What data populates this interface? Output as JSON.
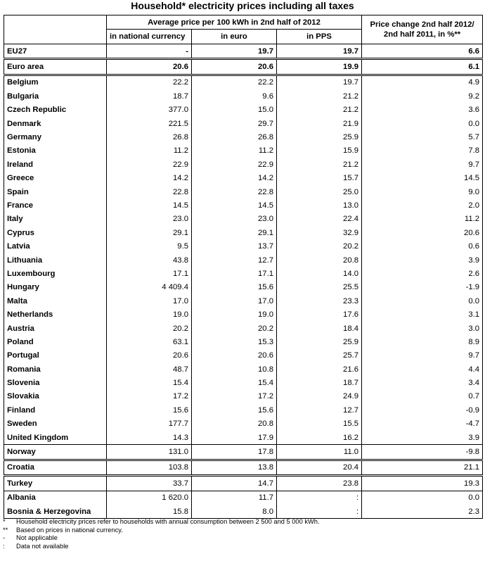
{
  "title": "Household* electricity prices including all taxes",
  "header": {
    "avg_group": "Average price per 100 kWh in 2nd half of 2012",
    "col_national": "in national currency",
    "col_euro": "in euro",
    "col_pps": "in PPS",
    "change_line1": "Price change 2nd half 2012/",
    "change_line2": "2nd half 2011, in %**"
  },
  "rows": [
    {
      "country": "EU27",
      "national": "-",
      "euro": "19.7",
      "pps": "19.7",
      "change": "6.6"
    },
    {
      "country": "Euro area",
      "national": "20.6",
      "euro": "20.6",
      "pps": "19.9",
      "change": "6.1"
    },
    {
      "country": "Belgium",
      "national": "22.2",
      "euro": "22.2",
      "pps": "19.7",
      "change": "4.9"
    },
    {
      "country": "Bulgaria",
      "national": "18.7",
      "euro": "9.6",
      "pps": "21.2",
      "change": "9.2"
    },
    {
      "country": "Czech Republic",
      "national": "377.0",
      "euro": "15.0",
      "pps": "21.2",
      "change": "3.6"
    },
    {
      "country": "Denmark",
      "national": "221.5",
      "euro": "29.7",
      "pps": "21.9",
      "change": "0.0"
    },
    {
      "country": "Germany",
      "national": "26.8",
      "euro": "26.8",
      "pps": "25.9",
      "change": "5.7"
    },
    {
      "country": "Estonia",
      "national": "11.2",
      "euro": "11.2",
      "pps": "15.9",
      "change": "7.8"
    },
    {
      "country": "Ireland",
      "national": "22.9",
      "euro": "22.9",
      "pps": "21.2",
      "change": "9.7"
    },
    {
      "country": "Greece",
      "national": "14.2",
      "euro": "14.2",
      "pps": "15.7",
      "change": "14.5"
    },
    {
      "country": "Spain",
      "national": "22.8",
      "euro": "22.8",
      "pps": "25.0",
      "change": "9.0"
    },
    {
      "country": "France",
      "national": "14.5",
      "euro": "14.5",
      "pps": "13.0",
      "change": "2.0"
    },
    {
      "country": "Italy",
      "national": "23.0",
      "euro": "23.0",
      "pps": "22.4",
      "change": "11.2"
    },
    {
      "country": "Cyprus",
      "national": "29.1",
      "euro": "29.1",
      "pps": "32.9",
      "change": "20.6"
    },
    {
      "country": "Latvia",
      "national": "9.5",
      "euro": "13.7",
      "pps": "20.2",
      "change": "0.6"
    },
    {
      "country": "Lithuania",
      "national": "43.8",
      "euro": "12.7",
      "pps": "20.8",
      "change": "3.9"
    },
    {
      "country": "Luxembourg",
      "national": "17.1",
      "euro": "17.1",
      "pps": "14.0",
      "change": "2.6"
    },
    {
      "country": "Hungary",
      "national": "4 409.4",
      "euro": "15.6",
      "pps": "25.5",
      "change": "-1.9"
    },
    {
      "country": "Malta",
      "national": "17.0",
      "euro": "17.0",
      "pps": "23.3",
      "change": "0.0"
    },
    {
      "country": "Netherlands",
      "national": "19.0",
      "euro": "19.0",
      "pps": "17.6",
      "change": "3.1"
    },
    {
      "country": "Austria",
      "national": "20.2",
      "euro": "20.2",
      "pps": "18.4",
      "change": "3.0"
    },
    {
      "country": "Poland",
      "national": "63.1",
      "euro": "15.3",
      "pps": "25.9",
      "change": "8.9"
    },
    {
      "country": "Portugal",
      "national": "20.6",
      "euro": "20.6",
      "pps": "25.7",
      "change": "9.7"
    },
    {
      "country": "Romania",
      "national": "48.7",
      "euro": "10.8",
      "pps": "21.6",
      "change": "4.4"
    },
    {
      "country": "Slovenia",
      "national": "15.4",
      "euro": "15.4",
      "pps": "18.7",
      "change": "3.4"
    },
    {
      "country": "Slovakia",
      "national": "17.2",
      "euro": "17.2",
      "pps": "24.9",
      "change": "0.7"
    },
    {
      "country": "Finland",
      "national": "15.6",
      "euro": "15.6",
      "pps": "12.7",
      "change": "-0.9"
    },
    {
      "country": "Sweden",
      "national": "177.7",
      "euro": "20.8",
      "pps": "15.5",
      "change": "-4.7"
    },
    {
      "country": "United Kingdom",
      "national": "14.3",
      "euro": "17.9",
      "pps": "16.2",
      "change": "3.9"
    },
    {
      "country": "Norway",
      "national": "131.0",
      "euro": "17.8",
      "pps": "11.0",
      "change": "-9.8"
    },
    {
      "country": "Croatia",
      "national": "103.8",
      "euro": "13.8",
      "pps": "20.4",
      "change": "21.1"
    },
    {
      "country": "Turkey",
      "national": "33.7",
      "euro": "14.7",
      "pps": "23.8",
      "change": "19.3"
    },
    {
      "country": "Albania",
      "national": "1 620.0",
      "euro": "11.7",
      "pps": ":",
      "change": "0.0"
    },
    {
      "country": "Bosnia & Herzegovina",
      "national": "15.8",
      "euro": "8.0",
      "pps": ":",
      "change": "2.3"
    }
  ],
  "footnotes": [
    {
      "mark": "*",
      "text": "Household electricity prices refer to households with annual consumption between 2 500 and 5 000 kWh."
    },
    {
      "mark": "**",
      "text": "Based on prices in national currency."
    },
    {
      "mark": "-",
      "text": "Not applicable"
    },
    {
      "mark": ":",
      "text": "Data not available"
    }
  ]
}
